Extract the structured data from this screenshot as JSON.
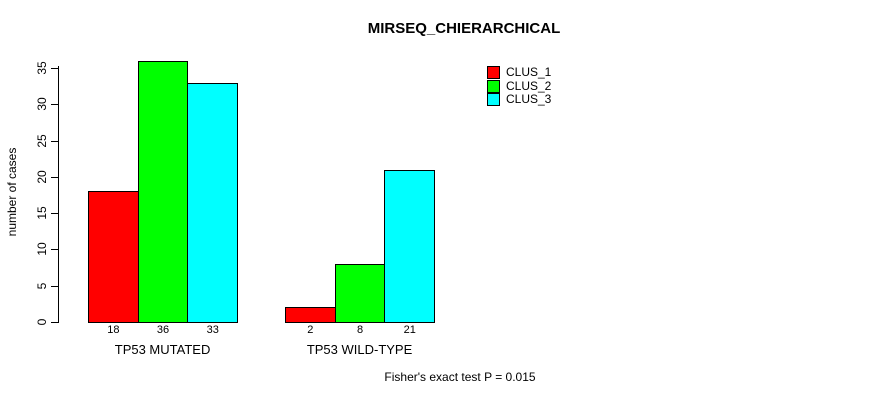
{
  "chart_data": {
    "type": "bar",
    "title": "MIRSEQ_CHIERARCHICAL",
    "ylabel": "number of cases",
    "xlabel": "",
    "categories": [
      "TP53 MUTATED",
      "TP53 WILD-TYPE"
    ],
    "series": [
      {
        "name": "CLUS_1",
        "color": "#FF0000",
        "values": [
          18,
          2
        ]
      },
      {
        "name": "CLUS_2",
        "color": "#00FF00",
        "values": [
          36,
          8
        ]
      },
      {
        "name": "CLUS_3",
        "color": "#00FFFF",
        "values": [
          33,
          21
        ]
      }
    ],
    "bar_value_labels": [
      [
        18,
        36,
        33
      ],
      [
        2,
        8,
        21
      ]
    ],
    "ylim": [
      0,
      35
    ],
    "yticks": [
      0,
      5,
      10,
      15,
      20,
      25,
      30,
      35
    ],
    "grid": false,
    "legend_position": "top-right",
    "annotation": "Fisher's exact test P = 0.015"
  }
}
